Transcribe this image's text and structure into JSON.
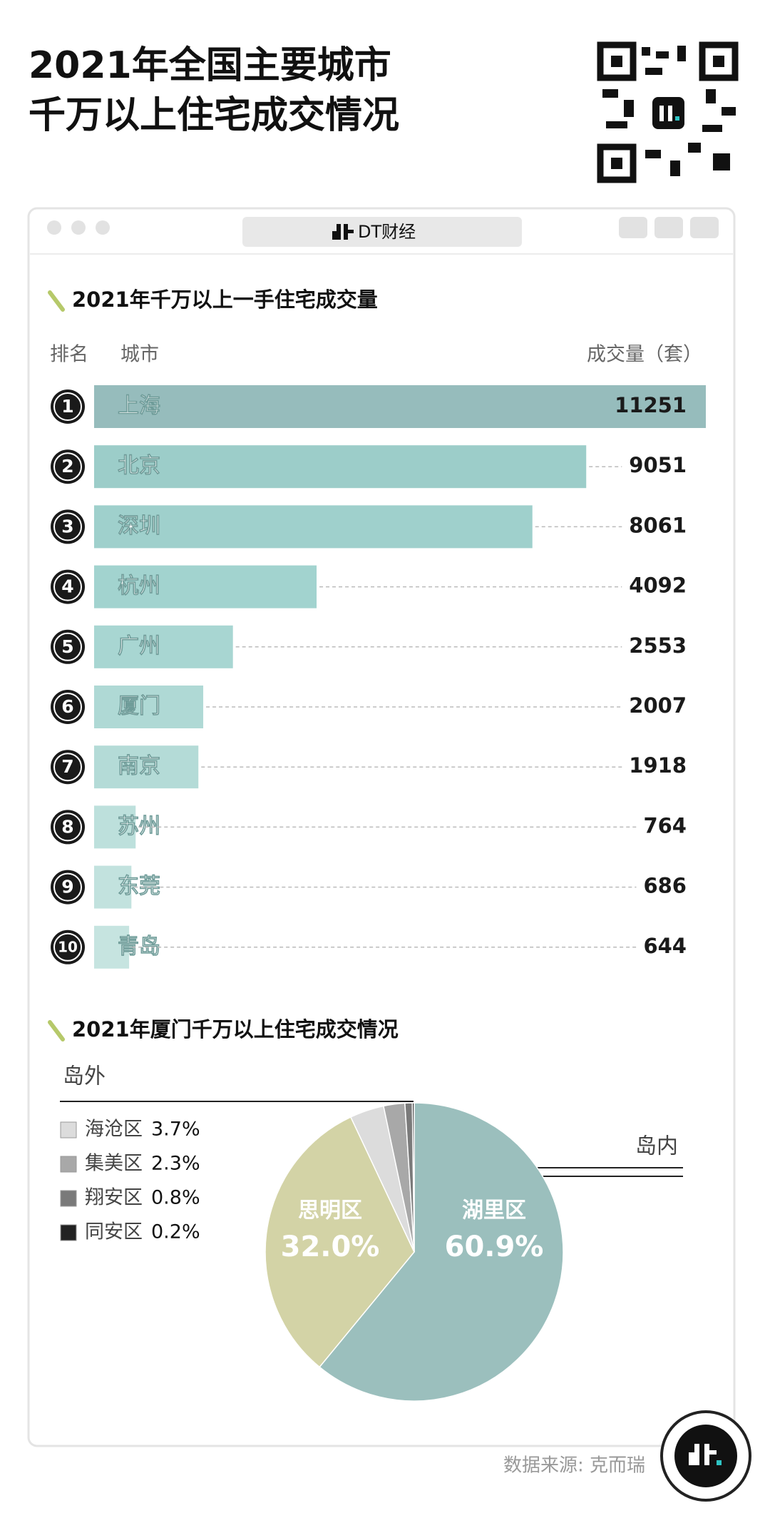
{
  "header": {
    "title_lines": [
      "2021年全国主要城市",
      "千万以上住宅成交情况"
    ]
  },
  "window_title": "DT财经",
  "chart_data": [
    {
      "type": "bar",
      "orientation": "horizontal",
      "title": "2021年千万以上一手住宅成交量",
      "rank_header": "排名",
      "category_header": "城市",
      "value_header": "成交量（套）",
      "rank_labels": [
        "1",
        "2",
        "3",
        "4",
        "5",
        "6",
        "7",
        "8",
        "9",
        "10"
      ],
      "categories": [
        "上海",
        "北京",
        "深圳",
        "杭州",
        "广州",
        "厦门",
        "南京",
        "苏州",
        "东莞",
        "青岛"
      ],
      "values": [
        11251,
        9051,
        8061,
        4092,
        2553,
        2007,
        1918,
        764,
        686,
        644
      ],
      "colors": [
        "#96bcbc",
        "#9ccdc9",
        "#9fd0cc",
        "#a2d3cf",
        "#a8d6d2",
        "#afd9d5",
        "#b4dbd7",
        "#bde0dc",
        "#c2e2de",
        "#c6e4e0"
      ]
    },
    {
      "type": "pie",
      "title": "2021年厦门千万以上住宅成交情况",
      "categories": [
        "湖里区",
        "思明区",
        "海沧区",
        "集美区",
        "翔安区",
        "同安区"
      ],
      "values": [
        60.9,
        32.0,
        3.7,
        2.3,
        0.8,
        0.2
      ],
      "value_labels": [
        "60.9%",
        "32.0%",
        "3.7%",
        "2.3%",
        "0.8%",
        "0.2%"
      ],
      "colors": [
        "#9bbfbd",
        "#d3d3a6",
        "#dcdcdc",
        "#a8a8a8",
        "#7a7a7a",
        "#222222"
      ],
      "annotations": [
        "岛外",
        "岛内"
      ]
    }
  ],
  "source": "数据来源: 克而瑞"
}
